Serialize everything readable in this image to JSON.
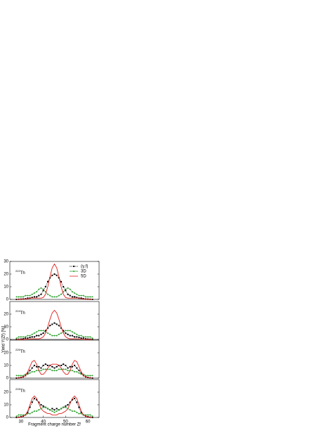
{
  "chart_data": [
    {
      "type": "line",
      "ylabel": "Yield Y(Zf) [%]",
      "annotation": {
        "mass": "222",
        "symbol": "Th"
      },
      "legend": "upper right",
      "xlim": [
        25,
        65
      ],
      "ylim": [
        0,
        30
      ],
      "yticks": [
        0,
        10,
        20,
        30
      ],
      "x": [
        28,
        29,
        30,
        31,
        32,
        33,
        34,
        35,
        36,
        37,
        38,
        39,
        40,
        41,
        42,
        43,
        44,
        45,
        46,
        47,
        48,
        49,
        50,
        51,
        52,
        53,
        54,
        55,
        56,
        57,
        58,
        59,
        60,
        61,
        62
      ],
      "series": [
        {
          "name": "(γ,f)",
          "color": "#000000",
          "dashed": true,
          "marker": "square",
          "values": [
            0,
            0.1,
            0.2,
            0.3,
            0.5,
            1,
            1,
            1.5,
            2,
            2,
            3,
            4,
            7,
            10,
            14,
            17,
            19,
            20,
            19,
            17,
            14,
            10,
            7,
            4,
            3,
            2,
            2,
            1.5,
            1,
            1,
            0.5,
            0.3,
            0.2,
            0.1,
            0
          ]
        },
        {
          "name": "3D",
          "color": "#2ca02c",
          "dashed": false,
          "marker": "circle",
          "values": [
            2,
            2,
            2,
            2,
            3,
            3,
            3,
            4,
            5,
            6,
            8,
            9,
            8,
            6,
            4,
            3,
            2,
            2,
            2,
            3,
            4,
            6,
            8,
            9,
            8,
            6,
            5,
            4,
            3,
            3,
            3,
            2,
            2,
            2,
            2
          ]
        },
        {
          "name": "5D",
          "color": "#e0201b",
          "dashed": false,
          "marker": "none",
          "values": [
            0,
            0,
            0.1,
            0.2,
            0.3,
            0.5,
            1,
            1,
            1,
            1,
            1,
            1,
            1.5,
            4,
            10,
            18,
            25,
            28,
            25,
            18,
            10,
            4,
            1.5,
            1,
            1,
            1,
            1,
            1,
            1,
            0.5,
            0.3,
            0.2,
            0.1,
            0,
            0
          ]
        }
      ]
    },
    {
      "type": "line",
      "annotation": {
        "mass": "224",
        "symbol": "Th"
      },
      "xlim": [
        25,
        65
      ],
      "ylim": [
        0,
        30
      ],
      "yticks": [
        0,
        10,
        20
      ],
      "x": [
        28,
        29,
        30,
        31,
        32,
        33,
        34,
        35,
        36,
        37,
        38,
        39,
        40,
        41,
        42,
        43,
        44,
        45,
        46,
        47,
        48,
        49,
        50,
        51,
        52,
        53,
        54,
        55,
        56,
        57,
        58,
        59,
        60,
        61,
        62
      ],
      "series": [
        {
          "color": "#000000",
          "dashed": true,
          "marker": "square",
          "values": [
            0.1,
            0.2,
            0.3,
            0.5,
            1,
            1,
            1.5,
            2,
            2,
            3,
            3,
            4,
            5,
            7,
            9,
            11,
            12,
            13,
            12,
            11,
            9,
            7,
            5,
            4,
            3,
            3,
            2,
            2,
            1.5,
            1,
            1,
            0.5,
            0.3,
            0.2,
            0.1
          ]
        },
        {
          "color": "#2ca02c",
          "dashed": false,
          "marker": "circle",
          "values": [
            1,
            2,
            2,
            2,
            2,
            3,
            3,
            4,
            5,
            6,
            7,
            7,
            7,
            6,
            5,
            4,
            3,
            3,
            3,
            4,
            5,
            6,
            7,
            7,
            7,
            6,
            5,
            4,
            3,
            3,
            2,
            2,
            2,
            2,
            1
          ]
        },
        {
          "color": "#e0201b",
          "dashed": false,
          "marker": "none",
          "values": [
            0,
            0,
            0,
            0,
            0.1,
            0.2,
            0.3,
            0.5,
            0.5,
            0.5,
            0.5,
            1,
            2,
            5,
            10,
            16,
            21,
            23,
            21,
            16,
            10,
            5,
            2,
            1,
            0.5,
            0.5,
            0.5,
            0.5,
            0.3,
            0.2,
            0.1,
            0,
            0,
            0,
            0
          ]
        }
      ]
    },
    {
      "type": "line",
      "annotation": {
        "mass": "226",
        "symbol": "Th"
      },
      "xlim": [
        25,
        65
      ],
      "ylim": [
        0,
        30
      ],
      "yticks": [
        0,
        10,
        20
      ],
      "x": [
        28,
        29,
        30,
        31,
        32,
        33,
        34,
        35,
        36,
        37,
        38,
        39,
        40,
        41,
        42,
        43,
        44,
        45,
        46,
        47,
        48,
        49,
        50,
        51,
        52,
        53,
        54,
        55,
        56,
        57,
        58,
        59,
        60,
        61,
        62
      ],
      "series": [
        {
          "color": "#000000",
          "dashed": true,
          "marker": "square",
          "values": [
            0,
            0.2,
            0.5,
            1,
            2,
            4,
            6,
            8,
            10,
            9,
            9,
            8,
            10,
            11,
            10,
            10,
            9,
            8,
            9,
            10,
            10,
            11,
            10,
            8,
            9,
            9,
            10,
            8,
            6,
            4,
            2,
            1,
            0.5,
            0.2,
            0
          ]
        },
        {
          "color": "#2ca02c",
          "dashed": false,
          "marker": "circle",
          "values": [
            2,
            2,
            2,
            2,
            3,
            3,
            4,
            5,
            5,
            6,
            6,
            6,
            7,
            7,
            7,
            7,
            6,
            6,
            6,
            7,
            7,
            7,
            7,
            6,
            6,
            6,
            5,
            5,
            4,
            3,
            3,
            2,
            2,
            2,
            2
          ]
        },
        {
          "color": "#e0201b",
          "dashed": false,
          "marker": "none",
          "values": [
            0,
            0.2,
            0.5,
            1,
            2,
            5,
            9,
            13,
            14,
            11,
            6,
            3,
            3,
            5,
            8,
            10,
            11,
            11,
            11,
            10,
            8,
            5,
            3,
            3,
            6,
            11,
            14,
            13,
            9,
            5,
            2,
            1,
            0.5,
            0.2,
            0
          ]
        }
      ]
    },
    {
      "type": "line",
      "xlabel": "Fragment charge number Zf",
      "annotation": {
        "mass": "228",
        "symbol": "Th"
      },
      "xlim": [
        25,
        65
      ],
      "xticks": [
        30,
        40,
        50,
        60
      ],
      "ylim": [
        0,
        30
      ],
      "yticks": [
        0,
        10,
        20
      ],
      "x": [
        28,
        29,
        30,
        31,
        32,
        33,
        34,
        35,
        36,
        37,
        38,
        39,
        40,
        41,
        42,
        43,
        44,
        45,
        46,
        47,
        48,
        49,
        50,
        51,
        52,
        53,
        54,
        55,
        56,
        57,
        58,
        59,
        60,
        61,
        62
      ],
      "series": [
        {
          "color": "#000000",
          "dashed": true,
          "marker": "square",
          "values": [
            0,
            0.2,
            0.5,
            1,
            2,
            4,
            8,
            12,
            15,
            14,
            12,
            10,
            9,
            8,
            7,
            6,
            7,
            6,
            7,
            6,
            7,
            8,
            9,
            10,
            12,
            14,
            15,
            12,
            8,
            4,
            2,
            1,
            0.5,
            0.2,
            0
          ]
        },
        {
          "color": "#2ca02c",
          "dashed": false,
          "marker": "circle",
          "values": [
            1,
            2,
            2,
            2,
            2,
            3,
            3,
            4,
            5,
            5,
            6,
            7,
            8,
            8,
            7,
            6,
            5,
            4,
            5,
            6,
            7,
            8,
            8,
            7,
            6,
            5,
            5,
            4,
            3,
            3,
            2,
            2,
            2,
            2,
            1
          ]
        },
        {
          "color": "#e0201b",
          "dashed": false,
          "marker": "none",
          "values": [
            0,
            0,
            0.3,
            1,
            2,
            5,
            10,
            15,
            17,
            15,
            11,
            7,
            5,
            4,
            3,
            3,
            2,
            2,
            2,
            3,
            3,
            4,
            5,
            7,
            11,
            15,
            17,
            15,
            10,
            5,
            2,
            1,
            0.3,
            0,
            0
          ]
        }
      ]
    }
  ]
}
